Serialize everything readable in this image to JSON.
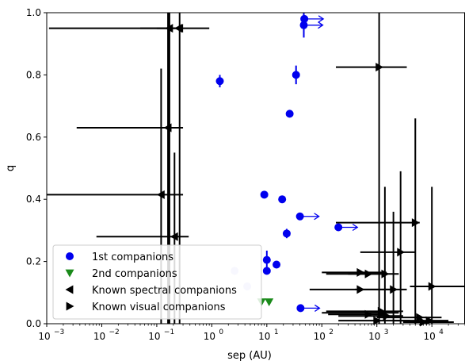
{
  "chart_data": {
    "type": "scatter",
    "title": "",
    "xlabel": "sep (AU)",
    "ylabel": "q",
    "xscale": "log",
    "xlim": [
      0.001,
      40000
    ],
    "ylim": [
      0,
      1.0
    ],
    "x_ticks": [
      {
        "value": 0.001,
        "base": "10",
        "exp": "−3"
      },
      {
        "value": 0.01,
        "base": "10",
        "exp": "−2"
      },
      {
        "value": 0.1,
        "base": "10",
        "exp": "−1"
      },
      {
        "value": 1,
        "base": "10",
        "exp": "0"
      },
      {
        "value": 10,
        "base": "10",
        "exp": "1"
      },
      {
        "value": 100,
        "base": "10",
        "exp": "2"
      },
      {
        "value": 1000,
        "base": "10",
        "exp": "3"
      },
      {
        "value": 10000,
        "base": "10",
        "exp": "4"
      }
    ],
    "y_ticks": [
      {
        "value": 0.0,
        "label": "0.0"
      },
      {
        "value": 0.2,
        "label": "0.2"
      },
      {
        "value": 0.4,
        "label": "0.4"
      },
      {
        "value": 0.6,
        "label": "0.6"
      },
      {
        "value": 0.8,
        "label": "0.8"
      },
      {
        "value": 1.0,
        "label": "1.0"
      }
    ],
    "grid": false,
    "legend_position": "lower-left",
    "colors": {
      "first": "#0000ee",
      "first_faint": "#c8c8f4",
      "second": "#1a8a1a",
      "known": "#000000"
    },
    "series": [
      {
        "name": "1st companions",
        "marker": "circle",
        "points": [
          {
            "x": 1.4,
            "y": 0.78,
            "yerr": 0.02
          },
          {
            "x": 9.0,
            "y": 0.415
          },
          {
            "x": 10.0,
            "y": 0.205,
            "yerr": 0.03
          },
          {
            "x": 10.0,
            "y": 0.17
          },
          {
            "x": 15.0,
            "y": 0.19
          },
          {
            "x": 19.0,
            "y": 0.4
          },
          {
            "x": 23.0,
            "y": 0.29,
            "yerr": 0.015
          },
          {
            "x": 26.0,
            "y": 0.675
          },
          {
            "x": 34.0,
            "y": 0.8,
            "yerr": 0.03
          },
          {
            "x": 40.0,
            "y": 0.345,
            "arrow": "right"
          },
          {
            "x": 41.0,
            "y": 0.05,
            "arrow": "right"
          },
          {
            "x": 48.0,
            "y": 0.98,
            "arrow": "right"
          },
          {
            "x": 47.0,
            "y": 0.96,
            "arrow": "right",
            "yerr": 0.04
          },
          {
            "x": 200.0,
            "y": 0.31,
            "arrow": "right"
          },
          {
            "x": 2.6,
            "y": 0.17,
            "faint": true
          },
          {
            "x": 4.4,
            "y": 0.12,
            "faint": true
          }
        ]
      },
      {
        "name": "2nd companions",
        "marker": "triangle-down",
        "points": [
          {
            "x": 8.0,
            "y": 0.07
          },
          {
            "x": 11.0,
            "y": 0.07
          }
        ]
      },
      {
        "name": "Known spectral companions",
        "marker": "triangle-left",
        "points": [
          {
            "x": 0.17,
            "y": 0.95,
            "xlo": 0.0011,
            "xhi": 0.25,
            "ylo": 0,
            "yhi": 1.0
          },
          {
            "x": 0.25,
            "y": 0.95,
            "xlo": 0.1,
            "xhi": 0.28
          },
          {
            "x": 0.26,
            "y": 0.95,
            "xlo": 0.05,
            "xhi": 0.9,
            "ylo": 0,
            "yhi": 1.0
          },
          {
            "x": 0.16,
            "y": 0.63,
            "xlo": 0.0035,
            "xhi": 0.3,
            "ylo": 0,
            "yhi": 1.0
          },
          {
            "x": 0.12,
            "y": 0.415,
            "xlo": 0.001,
            "xhi": 0.3,
            "ylo": 0,
            "yhi": 0.82
          },
          {
            "x": 0.21,
            "y": 0.28,
            "xlo": 0.008,
            "xhi": 0.38,
            "ylo": 0,
            "yhi": 0.55
          }
        ]
      },
      {
        "name": "Known visual companions",
        "marker": "triangle-right",
        "points": [
          {
            "x": 1100,
            "y": 0.825,
            "xlo": 180,
            "xhi": 3500,
            "ylo": 0,
            "yhi": 1.0
          },
          {
            "x": 5000,
            "y": 0.325,
            "xlo": 180,
            "xhi": 6000,
            "ylo": 0,
            "yhi": 0.66
          },
          {
            "x": 2700,
            "y": 0.23,
            "xlo": 500,
            "xhi": 5000,
            "ylo": 0,
            "yhi": 0.49
          },
          {
            "x": 1400,
            "y": 0.16,
            "xlo": 300,
            "xhi": 2500,
            "ylo": 0,
            "yhi": 0.44
          },
          {
            "x": 2000,
            "y": 0.11,
            "xlo": 400,
            "xhi": 3500,
            "ylo": 0,
            "yhi": 0.36
          },
          {
            "x": 10000,
            "y": 0.12,
            "xlo": 4000,
            "xhi": 40000,
            "ylo": 0,
            "yhi": 0.44
          },
          {
            "x": 500,
            "y": 0.165,
            "xlo": 100,
            "xhi": 1500
          },
          {
            "x": 700,
            "y": 0.16,
            "xlo": 120,
            "xhi": 1200
          },
          {
            "x": 500,
            "y": 0.11,
            "xlo": 60,
            "xhi": 2200
          },
          {
            "x": 1200,
            "y": 0.04,
            "xlo": 120,
            "xhi": 3000
          },
          {
            "x": 1300,
            "y": 0.035,
            "xlo": 100,
            "xhi": 2500
          },
          {
            "x": 1500,
            "y": 0.025,
            "xlo": 200,
            "xhi": 3000
          },
          {
            "x": 1000,
            "y": 0.01,
            "xlo": 200,
            "xhi": 4000
          },
          {
            "x": 6000,
            "y": 0.02,
            "xlo": 1000,
            "xhi": 15000
          },
          {
            "x": 9000,
            "y": 0.01,
            "xlo": 2000,
            "xhi": 20000
          },
          {
            "x": 7000,
            "y": 0.005,
            "xlo": 3000,
            "xhi": 25000
          },
          {
            "x": 700,
            "y": 0.03,
            "xlo": 130,
            "xhi": 1100
          }
        ]
      }
    ]
  }
}
